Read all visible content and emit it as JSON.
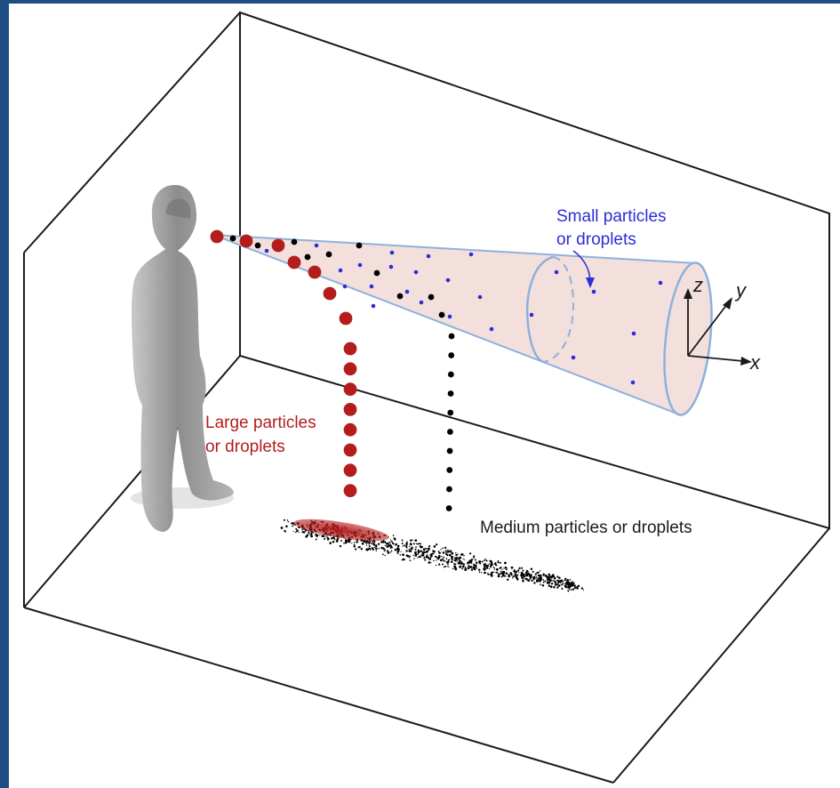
{
  "labels": {
    "small": [
      "Small particles",
      "or droplets"
    ],
    "large": [
      "Large particles",
      "or droplets"
    ],
    "medium": "Medium particles or droplets"
  },
  "axes": {
    "x": "x",
    "y": "y",
    "z": "z"
  },
  "colors": {
    "background": "#1f4e85",
    "room_lines": "#1a1a1a",
    "cone_fill": "#f3e0dc",
    "cone_edge": "#8fb0dc",
    "small": "#2d2dd6",
    "large": "#b51c1c",
    "medium": "#000000",
    "person": "#9a9a9a"
  },
  "icons": [
    "person-silhouette-icon",
    "coordinate-axes-icon",
    "arrow-icon"
  ]
}
